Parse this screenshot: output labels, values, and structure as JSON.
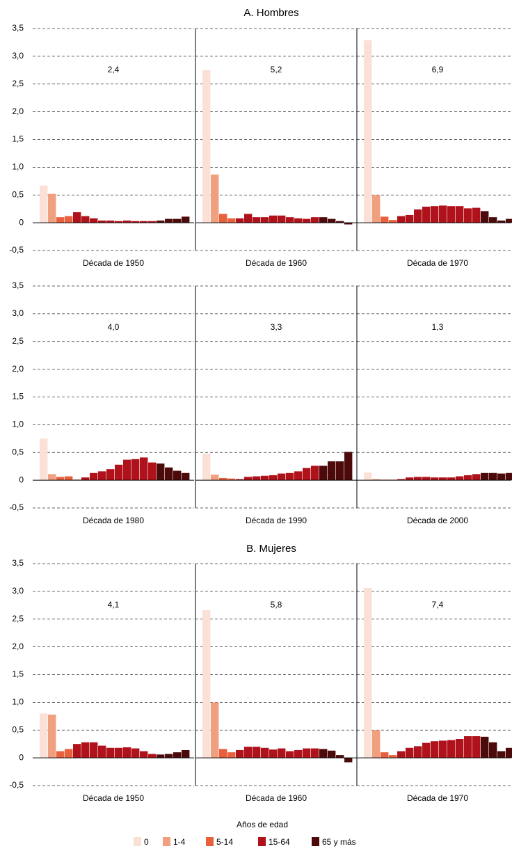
{
  "chart_data": {
    "type": "bar",
    "ylim": [
      -0.5,
      3.5
    ],
    "yticks": [
      {
        "value": -0.5,
        "label": "-0,5"
      },
      0,
      {
        "value": 0.5,
        "label": "0,5"
      },
      {
        "value": 1.0,
        "label": "1,0"
      },
      {
        "value": 1.5,
        "label": "1,5"
      },
      {
        "value": 2.0,
        "label": "2,0"
      },
      {
        "value": 2.5,
        "label": "2,5"
      },
      {
        "value": 3.0,
        "label": "3,0"
      },
      {
        "value": 3.5,
        "label": "3,5"
      }
    ],
    "grid": true,
    "legend_title": "Años de edad",
    "series": [
      {
        "name": "0",
        "color": "#fbe0d5"
      },
      {
        "name": "1-4",
        "color": "#f0a07f"
      },
      {
        "name": "5-14",
        "color": "#e8603c"
      },
      {
        "name": "15-64",
        "color": "#b0121b"
      },
      {
        "name": "65 y más",
        "color": "#4d0a0a"
      }
    ],
    "groups": [
      {
        "title": "A. Hombres",
        "panels": [
          {
            "xlabel": "Década de 1950",
            "annotation": "2,4",
            "values": [
              [
                0.67
              ],
              [
                0.52
              ],
              [
                0.1,
                0.12
              ],
              [
                0.19,
                0.12,
                0.08,
                0.04,
                0.04,
                0.03,
                0.04,
                0.03,
                0.03,
                0.03
              ],
              [
                0.04,
                0.07,
                0.07,
                0.11
              ]
            ]
          },
          {
            "xlabel": "Década de 1960",
            "annotation": "5,2",
            "values": [
              [
                2.75
              ],
              [
                0.87
              ],
              [
                0.16,
                0.08
              ],
              [
                0.08,
                0.16,
                0.1,
                0.1,
                0.13,
                0.13,
                0.1,
                0.08,
                0.07,
                0.1
              ],
              [
                0.1,
                0.07,
                0.03,
                -0.03
              ]
            ]
          },
          {
            "xlabel": "Década de 1970",
            "annotation": "6,9",
            "values": [
              [
                3.29
              ],
              [
                0.5
              ],
              [
                0.11,
                0.05
              ],
              [
                0.12,
                0.14,
                0.24,
                0.29,
                0.3,
                0.31,
                0.3,
                0.3,
                0.26,
                0.27
              ],
              [
                0.21,
                0.1,
                0.04,
                0.07
              ]
            ]
          },
          {
            "xlabel": "Década de 1980",
            "annotation": "4,0",
            "values": [
              [
                0.75
              ],
              [
                0.11
              ],
              [
                0.06,
                0.07
              ],
              [
                0.01,
                0.05,
                0.13,
                0.16,
                0.2,
                0.28,
                0.37,
                0.38,
                0.41,
                0.32
              ],
              [
                0.3,
                0.23,
                0.17,
                0.13
              ]
            ]
          },
          {
            "xlabel": "Década de 1990",
            "annotation": "3,3",
            "values": [
              [
                0.48
              ],
              [
                0.1
              ],
              [
                0.04,
                0.03
              ],
              [
                0.02,
                0.06,
                0.07,
                0.08,
                0.09,
                0.12,
                0.13,
                0.16,
                0.22,
                0.26
              ],
              [
                0.26,
                0.34,
                0.34,
                0.51
              ]
            ]
          },
          {
            "xlabel": "Década de 2000",
            "annotation": "1,3",
            "values": [
              [
                0.14
              ],
              [
                0.02
              ],
              [
                0.01,
                0.01
              ],
              [
                0.02,
                0.05,
                0.06,
                0.06,
                0.05,
                0.05,
                0.05,
                0.07,
                0.09,
                0.11
              ],
              [
                0.13,
                0.13,
                0.12,
                0.13
              ]
            ]
          }
        ]
      },
      {
        "title": "B. Mujeres",
        "panels": [
          {
            "xlabel": "Década de 1950",
            "annotation": "4,1",
            "values": [
              [
                0.8
              ],
              [
                0.78
              ],
              [
                0.12,
                0.16
              ],
              [
                0.25,
                0.28,
                0.28,
                0.22,
                0.18,
                0.18,
                0.19,
                0.17,
                0.12,
                0.07
              ],
              [
                0.06,
                0.07,
                0.1,
                0.14
              ]
            ]
          },
          {
            "xlabel": "Década de 1960",
            "annotation": "5,8",
            "values": [
              [
                2.66
              ],
              [
                1.0
              ],
              [
                0.16,
                0.1
              ],
              [
                0.14,
                0.2,
                0.2,
                0.18,
                0.15,
                0.17,
                0.12,
                0.14,
                0.17,
                0.17
              ],
              [
                0.16,
                0.13,
                0.05,
                -0.08
              ]
            ]
          },
          {
            "xlabel": "Década de 1970",
            "annotation": "7,4",
            "values": [
              [
                3.06
              ],
              [
                0.5
              ],
              [
                0.1,
                0.05
              ],
              [
                0.12,
                0.18,
                0.21,
                0.27,
                0.3,
                0.31,
                0.32,
                0.34,
                0.39,
                0.39
              ],
              [
                0.38,
                0.28,
                0.12,
                0.18
              ]
            ]
          }
        ]
      }
    ]
  }
}
